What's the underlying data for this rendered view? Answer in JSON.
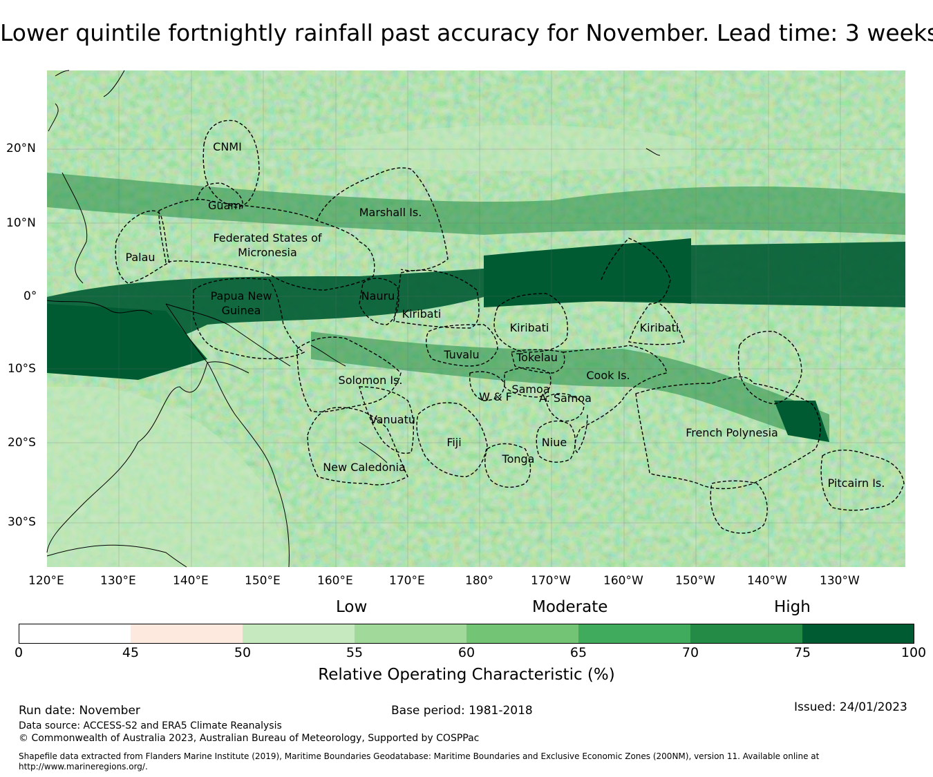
{
  "title": "Lower quintile fortnightly rainfall past accuracy for November. Lead time: 3 weeks",
  "map": {
    "lat_labels": [
      "20°N",
      "10°N",
      "0°",
      "10°S",
      "20°S",
      "30°S"
    ],
    "lon_labels": [
      "120°E",
      "130°E",
      "140°E",
      "150°E",
      "160°E",
      "170°E",
      "180°",
      "170°W",
      "160°W",
      "150°W",
      "140°W",
      "130°W"
    ],
    "region_labels": [
      "CNMI",
      "Guam",
      "Marshall Is.",
      "Federated States of Micronesia",
      "Palau",
      "Papua New Guinea",
      "Nauru",
      "Kiribati",
      "Kiribati",
      "Kiribati",
      "Tuvalu",
      "Tokelau",
      "Solomon Is.",
      "Cook Is.",
      "Samoa",
      "W & F",
      "A. Samoa",
      "Vanuatu",
      "Fiji",
      "Niue",
      "Tonga",
      "French Polynesia",
      "New Caledonia",
      "Pitcairn Is."
    ]
  },
  "colorbar": {
    "categories": [
      "Low",
      "Moderate",
      "High"
    ],
    "bounds": [
      "0",
      "45",
      "50",
      "55",
      "60",
      "65",
      "70",
      "75",
      "100"
    ],
    "colors": [
      "#ffffff",
      "#fee9df",
      "#c7e9c0",
      "#a1d99b",
      "#74c476",
      "#41ab5d",
      "#238b45",
      "#005a32"
    ],
    "label": "Relative Operating Characteristic (%)"
  },
  "footer": {
    "run_date": "Run date: November",
    "base_period": "Base period: 1981-2018",
    "issued": "Issued: 24/01/2023",
    "data_source": "Data source: ACCESS-S2 and ERA5 Climate Reanalysis",
    "copyright": "© Commonwealth of Australia 2023, Australian Bureau of Meteorology, Supported by COSPPac",
    "shapefile": "Shapefile data extracted from Flanders Marine Institute (2019), Maritime Boundaries Geodatabase: Maritime Boundaries and Exclusive Economic Zones (200NM), version 11. Available online at http://www.marineregions.org/."
  }
}
